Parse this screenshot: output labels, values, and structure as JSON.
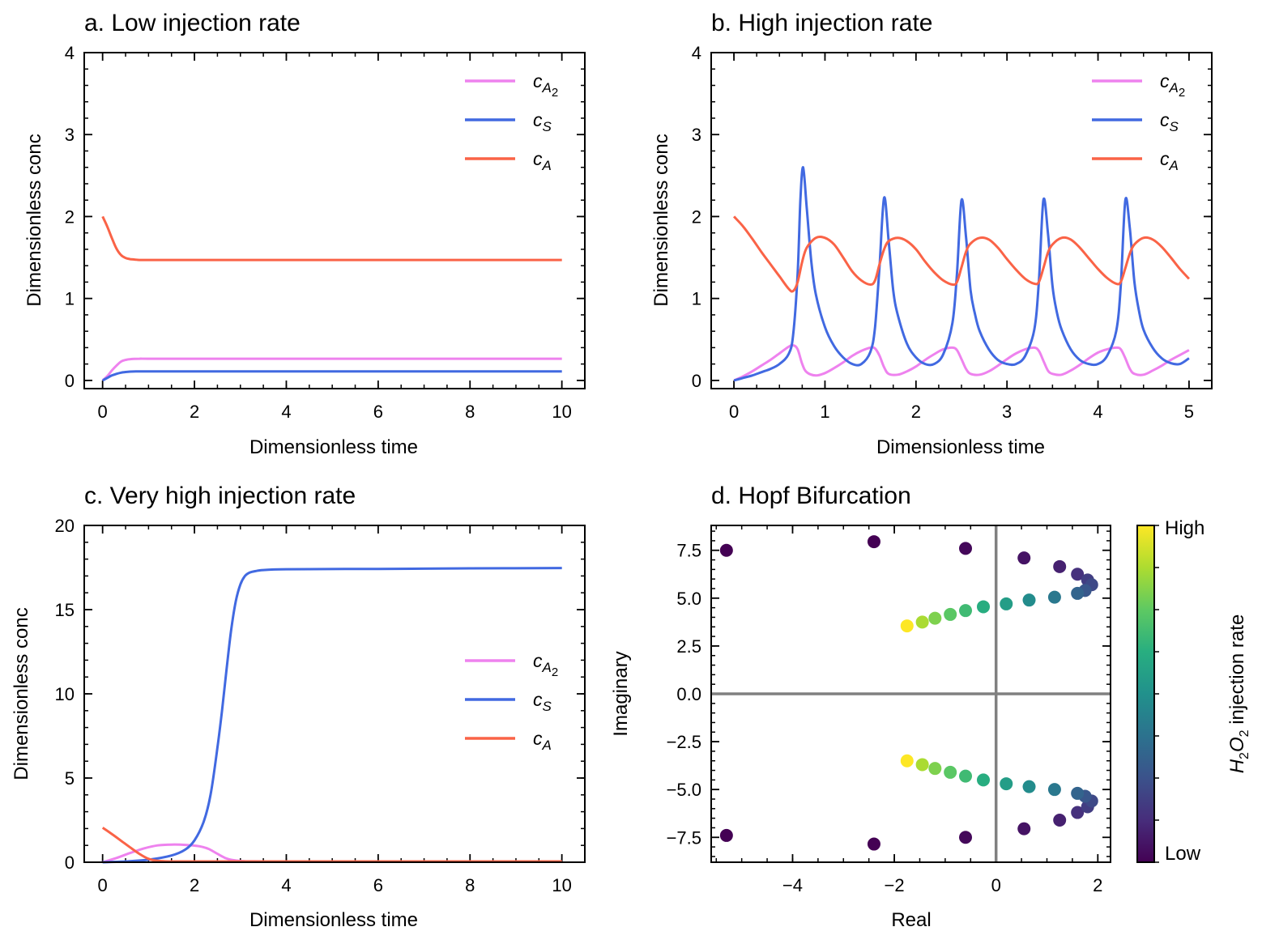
{
  "colors": {
    "cA2": "#ee82ee",
    "cS": "#4169e1",
    "cA": "#fa6347",
    "axisline": "#808080"
  },
  "chart_data": [
    {
      "id": "a",
      "type": "line",
      "title": "a. Low injection rate",
      "xlabel": "Dimensionless time",
      "ylabel": "Dimensionless conc",
      "xlim": [
        -0.4,
        10.5
      ],
      "ylim": [
        -0.1,
        4
      ],
      "xticks": [
        0,
        2,
        4,
        6,
        8,
        10
      ],
      "yticks": [
        0,
        1,
        2,
        3,
        4
      ],
      "xminor": 0.5,
      "yminor": 0.2,
      "legend": {
        "position": "top-right"
      },
      "series": [
        {
          "key": "cA2",
          "name": "c",
          "sub": "A",
          "subsub": "2",
          "x": [
            0,
            0.1,
            0.2,
            0.3,
            0.4,
            0.5,
            0.6,
            0.8,
            1.0,
            2,
            4,
            6,
            8,
            10
          ],
          "y": [
            0,
            0.05,
            0.12,
            0.18,
            0.23,
            0.25,
            0.26,
            0.265,
            0.265,
            0.265,
            0.265,
            0.265,
            0.265,
            0.265
          ]
        },
        {
          "key": "cS",
          "name": "c",
          "sub": "S",
          "x": [
            0,
            0.1,
            0.2,
            0.3,
            0.4,
            0.5,
            0.6,
            0.8,
            1.0,
            2,
            4,
            6,
            8,
            10
          ],
          "y": [
            0,
            0.03,
            0.06,
            0.08,
            0.095,
            0.103,
            0.107,
            0.11,
            0.11,
            0.11,
            0.11,
            0.11,
            0.11,
            0.11
          ]
        },
        {
          "key": "cA",
          "name": "c",
          "sub": "A",
          "x": [
            0,
            0.1,
            0.2,
            0.3,
            0.4,
            0.5,
            0.6,
            0.7,
            0.8,
            1.0,
            2,
            4,
            6,
            8,
            10
          ],
          "y": [
            2.0,
            1.88,
            1.74,
            1.61,
            1.53,
            1.495,
            1.48,
            1.475,
            1.47,
            1.47,
            1.47,
            1.47,
            1.47,
            1.47,
            1.47
          ]
        }
      ]
    },
    {
      "id": "b",
      "type": "line",
      "title": "b. High injection rate",
      "xlabel": "Dimensionless time",
      "ylabel": "Dimensionless conc",
      "xlim": [
        -0.25,
        5.25
      ],
      "ylim": [
        -0.1,
        4
      ],
      "xticks": [
        0,
        1,
        2,
        3,
        4,
        5
      ],
      "yticks": [
        0,
        1,
        2,
        3,
        4
      ],
      "xminor": 0.25,
      "yminor": 0.2,
      "legend": {
        "position": "top-right"
      },
      "series": [
        {
          "key": "cA2",
          "name": "c",
          "sub": "A",
          "subsub": "2",
          "x": [
            0,
            0.1,
            0.2,
            0.3,
            0.4,
            0.5,
            0.6,
            0.65,
            0.7,
            0.75,
            0.8,
            0.9,
            1.0,
            1.1,
            1.2,
            1.3,
            1.4,
            1.5,
            1.55,
            1.6,
            1.65,
            1.7,
            1.8,
            1.9,
            2.0,
            2.1,
            2.2,
            2.3,
            2.4,
            2.45,
            2.5,
            2.55,
            2.6,
            2.7,
            2.8,
            2.9,
            3.0,
            3.1,
            3.2,
            3.3,
            3.35,
            3.4,
            3.45,
            3.5,
            3.6,
            3.7,
            3.8,
            3.9,
            4.0,
            4.1,
            4.2,
            4.25,
            4.3,
            4.35,
            4.4,
            4.5,
            4.6,
            4.7,
            4.8,
            4.9,
            5.0
          ],
          "y": [
            0,
            0.05,
            0.11,
            0.18,
            0.25,
            0.33,
            0.41,
            0.43,
            0.38,
            0.2,
            0.1,
            0.06,
            0.09,
            0.15,
            0.22,
            0.3,
            0.36,
            0.4,
            0.39,
            0.3,
            0.16,
            0.08,
            0.07,
            0.11,
            0.17,
            0.25,
            0.32,
            0.38,
            0.4,
            0.37,
            0.26,
            0.14,
            0.08,
            0.07,
            0.11,
            0.18,
            0.26,
            0.33,
            0.38,
            0.4,
            0.36,
            0.24,
            0.12,
            0.08,
            0.07,
            0.12,
            0.19,
            0.27,
            0.34,
            0.38,
            0.4,
            0.38,
            0.27,
            0.14,
            0.08,
            0.07,
            0.12,
            0.18,
            0.25,
            0.31,
            0.37
          ]
        },
        {
          "key": "cS",
          "name": "c",
          "sub": "S",
          "x": [
            0,
            0.1,
            0.2,
            0.3,
            0.4,
            0.5,
            0.6,
            0.65,
            0.7,
            0.73,
            0.76,
            0.8,
            0.85,
            0.9,
            1.0,
            1.1,
            1.2,
            1.3,
            1.4,
            1.5,
            1.55,
            1.6,
            1.65,
            1.7,
            1.75,
            1.8,
            1.9,
            2.0,
            2.1,
            2.2,
            2.3,
            2.4,
            2.45,
            2.5,
            2.55,
            2.6,
            2.65,
            2.7,
            2.8,
            2.9,
            3.0,
            3.1,
            3.2,
            3.3,
            3.35,
            3.4,
            3.45,
            3.5,
            3.55,
            3.6,
            3.7,
            3.8,
            3.9,
            4.0,
            4.1,
            4.2,
            4.25,
            4.3,
            4.35,
            4.4,
            4.45,
            4.5,
            4.6,
            4.7,
            4.8,
            4.9,
            5.0
          ],
          "y": [
            0.0,
            0.03,
            0.06,
            0.1,
            0.14,
            0.2,
            0.32,
            0.55,
            1.3,
            2.2,
            2.6,
            2.1,
            1.45,
            1.05,
            0.65,
            0.42,
            0.28,
            0.2,
            0.2,
            0.35,
            0.65,
            1.4,
            2.23,
            1.7,
            1.1,
            0.8,
            0.45,
            0.28,
            0.2,
            0.2,
            0.32,
            0.7,
            1.3,
            2.2,
            1.75,
            1.1,
            0.8,
            0.6,
            0.38,
            0.25,
            0.2,
            0.2,
            0.3,
            0.62,
            1.2,
            2.2,
            1.8,
            1.15,
            0.82,
            0.62,
            0.38,
            0.25,
            0.2,
            0.2,
            0.3,
            0.6,
            1.15,
            2.2,
            1.85,
            1.2,
            0.85,
            0.62,
            0.4,
            0.27,
            0.21,
            0.2,
            0.27
          ]
        },
        {
          "key": "cA",
          "name": "c",
          "sub": "A",
          "x": [
            0,
            0.1,
            0.2,
            0.3,
            0.4,
            0.5,
            0.6,
            0.65,
            0.7,
            0.75,
            0.8,
            0.9,
            1.0,
            1.1,
            1.2,
            1.3,
            1.4,
            1.5,
            1.55,
            1.6,
            1.65,
            1.7,
            1.8,
            1.9,
            2.0,
            2.1,
            2.2,
            2.3,
            2.4,
            2.45,
            2.5,
            2.55,
            2.6,
            2.7,
            2.8,
            2.9,
            3.0,
            3.1,
            3.2,
            3.3,
            3.35,
            3.4,
            3.45,
            3.5,
            3.6,
            3.7,
            3.8,
            3.9,
            4.0,
            4.1,
            4.2,
            4.25,
            4.3,
            4.35,
            4.4,
            4.5,
            4.6,
            4.7,
            4.8,
            4.9,
            5.0
          ],
          "y": [
            2.0,
            1.88,
            1.73,
            1.57,
            1.42,
            1.27,
            1.12,
            1.09,
            1.2,
            1.45,
            1.62,
            1.74,
            1.74,
            1.66,
            1.5,
            1.33,
            1.22,
            1.17,
            1.22,
            1.42,
            1.6,
            1.7,
            1.74,
            1.7,
            1.6,
            1.45,
            1.32,
            1.22,
            1.17,
            1.2,
            1.38,
            1.57,
            1.67,
            1.74,
            1.72,
            1.62,
            1.48,
            1.35,
            1.24,
            1.18,
            1.2,
            1.37,
            1.56,
            1.66,
            1.74,
            1.72,
            1.62,
            1.49,
            1.36,
            1.25,
            1.18,
            1.2,
            1.37,
            1.55,
            1.66,
            1.74,
            1.72,
            1.63,
            1.5,
            1.36,
            1.24
          ]
        }
      ]
    },
    {
      "id": "c",
      "type": "line",
      "title": "c. Very high injection rate",
      "xlabel": "Dimensionless time",
      "ylabel": "Dimensionless conc",
      "xlim": [
        -0.4,
        10.5
      ],
      "ylim": [
        0,
        20
      ],
      "xticks": [
        0,
        2,
        4,
        6,
        8,
        10
      ],
      "yticks": [
        0,
        5,
        10,
        15,
        20
      ],
      "xminor": 0.5,
      "yminor": 1,
      "legend": {
        "position": "center-right"
      },
      "series": [
        {
          "key": "cA2",
          "name": "c",
          "sub": "A",
          "subsub": "2",
          "x": [
            0,
            0.3,
            0.6,
            0.9,
            1.2,
            1.5,
            1.8,
            2.1,
            2.3,
            2.5,
            2.7,
            2.9,
            3.1,
            3.5,
            4,
            6,
            8,
            10
          ],
          "y": [
            0,
            0.25,
            0.55,
            0.82,
            1.0,
            1.05,
            1.03,
            0.95,
            0.8,
            0.5,
            0.22,
            0.1,
            0.06,
            0.05,
            0.05,
            0.05,
            0.05,
            0.05
          ]
        },
        {
          "key": "cS",
          "name": "c",
          "sub": "S",
          "x": [
            0,
            0.5,
            1.0,
            1.5,
            1.8,
            2.0,
            2.2,
            2.35,
            2.5,
            2.6,
            2.7,
            2.8,
            2.9,
            3.0,
            3.1,
            3.2,
            3.35,
            3.5,
            4.0,
            6,
            8,
            10
          ],
          "y": [
            0,
            0.05,
            0.15,
            0.4,
            0.75,
            1.3,
            2.4,
            4.0,
            6.8,
            9.0,
            11.5,
            13.8,
            15.5,
            16.5,
            17.0,
            17.2,
            17.3,
            17.35,
            17.4,
            17.42,
            17.45,
            17.47
          ]
        },
        {
          "key": "cA",
          "name": "c",
          "sub": "A",
          "x": [
            0,
            0.2,
            0.4,
            0.6,
            0.8,
            1.0,
            1.2,
            1.5,
            2,
            4,
            6,
            8,
            10
          ],
          "y": [
            2.05,
            1.68,
            1.28,
            0.88,
            0.5,
            0.2,
            0.08,
            0.05,
            0.05,
            0.05,
            0.05,
            0.05,
            0.05
          ]
        }
      ]
    },
    {
      "id": "d",
      "type": "scatter",
      "title": "d. Hopf Bifurcation",
      "xlabel": "Real",
      "ylabel": "Imaginary",
      "xlim": [
        -5.6,
        2.25
      ],
      "ylim": [
        -8.8,
        8.8
      ],
      "xticks": [
        -4,
        -2,
        0,
        2
      ],
      "xtick_labels": [
        "−4",
        "−2",
        "0",
        "2"
      ],
      "yticks": [
        -7.5,
        -5.0,
        -2.5,
        0.0,
        2.5,
        5.0,
        7.5
      ],
      "ytick_labels": [
        "−7.5",
        "−5.0",
        "−2.5",
        "0.0",
        "2.5",
        "5.0",
        "7.5"
      ],
      "xminor": 0.5,
      "yminor": 0.5,
      "colorbar": {
        "label_prefix": "H",
        "label_sub1": "2",
        "label_mid": "O",
        "label_sub2": "2",
        "label_suffix": " injection rate",
        "high": "High",
        "low": "Low"
      },
      "points": [
        {
          "re": -5.3,
          "im": 7.5,
          "t": 0.0
        },
        {
          "re": -2.4,
          "im": 7.95,
          "t": 0.0
        },
        {
          "re": -0.6,
          "im": 7.6,
          "t": 0.02
        },
        {
          "re": 0.55,
          "im": 7.1,
          "t": 0.05
        },
        {
          "re": 1.25,
          "im": 6.65,
          "t": 0.09
        },
        {
          "re": 1.6,
          "im": 6.25,
          "t": 0.14
        },
        {
          "re": 1.8,
          "im": 5.95,
          "t": 0.18
        },
        {
          "re": 1.88,
          "im": 5.7,
          "t": 0.22
        },
        {
          "re": 1.75,
          "im": 5.4,
          "t": 0.27
        },
        {
          "re": 1.6,
          "im": 5.25,
          "t": 0.32
        },
        {
          "re": 1.15,
          "im": 5.05,
          "t": 0.4
        },
        {
          "re": 0.65,
          "im": 4.9,
          "t": 0.48
        },
        {
          "re": 0.2,
          "im": 4.7,
          "t": 0.55
        },
        {
          "re": -0.25,
          "im": 4.55,
          "t": 0.62
        },
        {
          "re": -0.6,
          "im": 4.35,
          "t": 0.68
        },
        {
          "re": -0.9,
          "im": 4.15,
          "t": 0.74
        },
        {
          "re": -1.2,
          "im": 3.95,
          "t": 0.8
        },
        {
          "re": -1.45,
          "im": 3.75,
          "t": 0.87
        },
        {
          "re": -1.75,
          "im": 3.55,
          "t": 1.0
        },
        {
          "re": -5.3,
          "im": -7.4,
          "t": 0.0
        },
        {
          "re": -2.4,
          "im": -7.85,
          "t": 0.0
        },
        {
          "re": -0.6,
          "im": -7.5,
          "t": 0.02
        },
        {
          "re": 0.55,
          "im": -7.05,
          "t": 0.05
        },
        {
          "re": 1.25,
          "im": -6.6,
          "t": 0.09
        },
        {
          "re": 1.6,
          "im": -6.2,
          "t": 0.14
        },
        {
          "re": 1.8,
          "im": -5.9,
          "t": 0.18
        },
        {
          "re": 1.88,
          "im": -5.6,
          "t": 0.22
        },
        {
          "re": 1.75,
          "im": -5.35,
          "t": 0.27
        },
        {
          "re": 1.6,
          "im": -5.2,
          "t": 0.32
        },
        {
          "re": 1.15,
          "im": -5.0,
          "t": 0.4
        },
        {
          "re": 0.65,
          "im": -4.85,
          "t": 0.48
        },
        {
          "re": 0.2,
          "im": -4.7,
          "t": 0.55
        },
        {
          "re": -0.25,
          "im": -4.5,
          "t": 0.62
        },
        {
          "re": -0.6,
          "im": -4.3,
          "t": 0.68
        },
        {
          "re": -0.9,
          "im": -4.1,
          "t": 0.74
        },
        {
          "re": -1.2,
          "im": -3.9,
          "t": 0.8
        },
        {
          "re": -1.45,
          "im": -3.7,
          "t": 0.87
        },
        {
          "re": -1.75,
          "im": -3.5,
          "t": 1.0
        }
      ]
    }
  ]
}
